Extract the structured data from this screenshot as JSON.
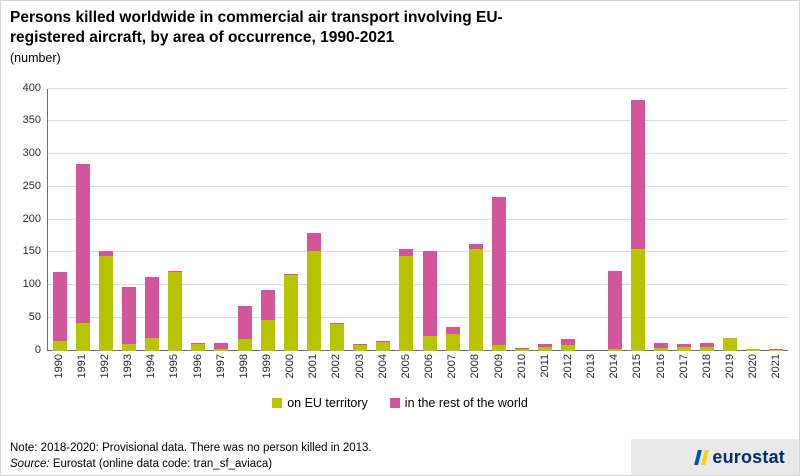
{
  "title_line1": "Persons killed worldwide in commercial air transport involving EU-",
  "title_line2": "registered aircraft, by area of occurrence, 1990-2021",
  "subtitle": "(number)",
  "note": "Note: 2018-2020: Provisional data. There was no person killed in 2013.",
  "source_label": "Source:",
  "source_text": "Eurostat (online data code: tran_sf_aviaca)",
  "logo_text": "eurostat",
  "colors": {
    "eu_series": "#b9c400",
    "rest_series": "#d2569c",
    "gridline": "#dcdcdc",
    "axis": "#6e6e6e",
    "logo_navy": "#002f6c",
    "logo_stripe_blue": "#0055a0",
    "logo_stripe_yellow": "#ffd100",
    "footer_band": "#e9e9e9"
  },
  "chart_data": {
    "type": "bar",
    "stacked": true,
    "title": "Persons killed worldwide in commercial air transport involving EU-registered aircraft, by area of occurrence, 1990-2021 (number)",
    "xlabel": "",
    "ylabel": "",
    "ylim": [
      0,
      400
    ],
    "y_ticks": [
      0,
      50,
      100,
      150,
      200,
      250,
      300,
      350,
      400
    ],
    "grid": true,
    "legend_position": "bottom",
    "categories": [
      "1990",
      "1991",
      "1992",
      "1993",
      "1994",
      "1995",
      "1996",
      "1997",
      "1998",
      "1999",
      "2000",
      "2001",
      "2002",
      "2003",
      "2004",
      "2005",
      "2006",
      "2007",
      "2008",
      "2009",
      "2010",
      "2011",
      "2012",
      "2013",
      "2014",
      "2015",
      "2016",
      "2017",
      "2018",
      "2019",
      "2020",
      "2021"
    ],
    "series": [
      {
        "name": "on EU territory",
        "color": "#b9c400",
        "values": [
          15,
          42,
          145,
          10,
          20,
          120,
          10,
          2,
          18,
          47,
          115,
          152,
          40,
          8,
          14,
          145,
          23,
          25,
          155,
          8,
          2,
          6,
          8,
          0,
          2,
          155,
          4,
          6,
          5,
          20,
          2,
          1
        ]
      },
      {
        "name": "in the rest of the world",
        "color": "#d2569c",
        "values": [
          105,
          243,
          7,
          87,
          92,
          1,
          2,
          10,
          50,
          45,
          2,
          28,
          2,
          2,
          1,
          10,
          129,
          11,
          8,
          227,
          2,
          4,
          10,
          0,
          120,
          228,
          8,
          4,
          7,
          0,
          1,
          1
        ]
      }
    ]
  }
}
